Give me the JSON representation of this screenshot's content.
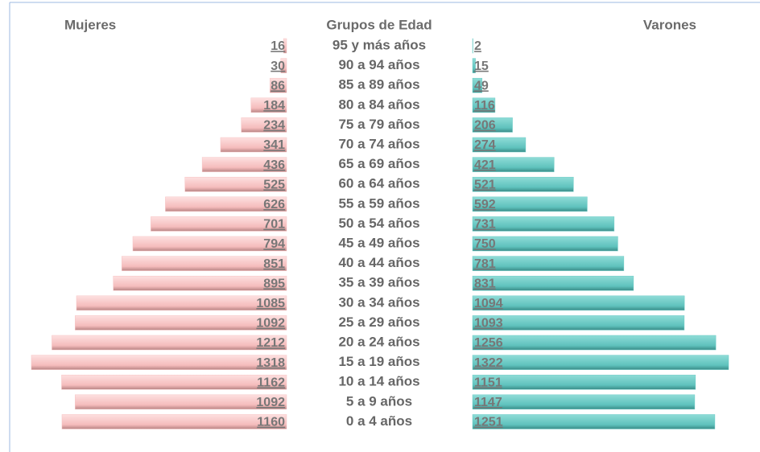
{
  "chart_data": {
    "type": "pyramid",
    "title": "Grupos de Edad",
    "categories": [
      "95 y más años",
      "90 a 94 años",
      "85 a 89 años",
      "80 a 84 años",
      "75 a 79 años",
      "70 a 74 años",
      "65 a 69 años",
      "60 a 64 años",
      "55 a 59 años",
      "50 a 54 años",
      "45 a 49 años",
      "40 a 44 años",
      "35 a 39 años",
      "30 a 34 años",
      "25 a 29 años",
      "20 a 24 años",
      "15 a 19 años",
      "10 a 14 años",
      "5 a 9 años",
      "0 a 4 años"
    ],
    "series": [
      {
        "name": "Mujeres",
        "color": "#f7c4c4",
        "values": [
          16,
          30,
          86,
          184,
          234,
          341,
          436,
          525,
          626,
          701,
          794,
          851,
          895,
          1085,
          1092,
          1212,
          1318,
          1162,
          1092,
          1160
        ]
      },
      {
        "name": "Varones",
        "color": "#6fcdc8",
        "values": [
          2,
          15,
          49,
          116,
          206,
          274,
          421,
          521,
          592,
          731,
          750,
          781,
          831,
          1094,
          1093,
          1256,
          1322,
          1151,
          1147,
          1251
        ]
      }
    ]
  }
}
